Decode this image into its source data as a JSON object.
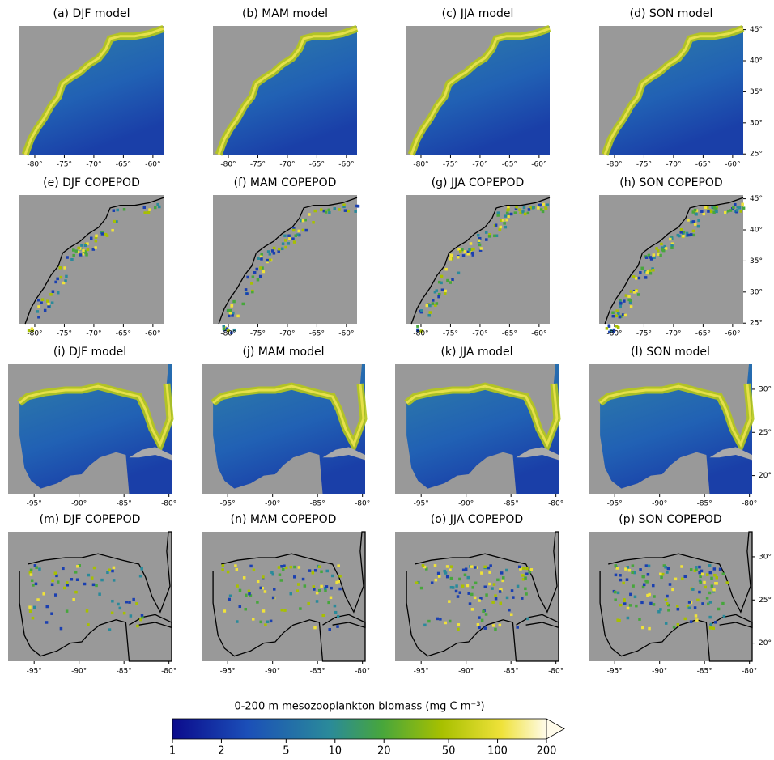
{
  "panels": [
    {
      "title": "(a) DJF model"
    },
    {
      "title": "(b) MAM model"
    },
    {
      "title": "(c) JJA model"
    },
    {
      "title": "(d) SON model"
    },
    {
      "title": "(e) DJF COPEPOD"
    },
    {
      "title": "(f) MAM COPEPOD"
    },
    {
      "title": "(g) JJA COPEPOD"
    },
    {
      "title": "(h) SON COPEPOD"
    },
    {
      "title": "(i) DJF model"
    },
    {
      "title": "(j) MAM model"
    },
    {
      "title": "(k) JJA model"
    },
    {
      "title": "(l) SON model"
    },
    {
      "title": "(m) DJF COPEPOD"
    },
    {
      "title": "(n) MAM COPEPOD"
    },
    {
      "title": "(o) JJA COPEPOD"
    },
    {
      "title": "(p) SON COPEPOD"
    }
  ],
  "atlantic": {
    "xlim": [
      -82.6,
      -58.2
    ],
    "xticks": [
      {
        "value": -80,
        "label": "-80°"
      },
      {
        "value": -75,
        "label": "-75°"
      },
      {
        "value": -70,
        "label": "-70°"
      },
      {
        "value": -65,
        "label": "-65°"
      },
      {
        "value": -60,
        "label": "-60°"
      }
    ],
    "ylim": [
      24.9,
      45.6
    ],
    "yticks": [
      {
        "value": 25,
        "label": "25°"
      },
      {
        "value": 30,
        "label": "30°"
      },
      {
        "value": 35,
        "label": "35°"
      },
      {
        "value": 40,
        "label": "40°"
      },
      {
        "value": 45,
        "label": "45°"
      }
    ]
  },
  "gulf": {
    "xlim": [
      -97.9,
      -79.7
    ],
    "xticks": [
      {
        "value": -95,
        "label": "-95°"
      },
      {
        "value": -90,
        "label": "-90°"
      },
      {
        "value": -85,
        "label": "-85°"
      },
      {
        "value": -80,
        "label": "-80°"
      }
    ],
    "ylim": [
      17.9,
      32.9
    ],
    "yticks": [
      {
        "value": 20,
        "label": "20°"
      },
      {
        "value": 25,
        "label": "25°"
      },
      {
        "value": 30,
        "label": "30°"
      }
    ]
  },
  "colorbar": {
    "label": "0-200 m mesozooplankton biomass (mg C m⁻³)",
    "log": true,
    "lim": [
      1,
      200
    ],
    "ticks": [
      1,
      2,
      5,
      10,
      20,
      50,
      100,
      200
    ]
  }
}
